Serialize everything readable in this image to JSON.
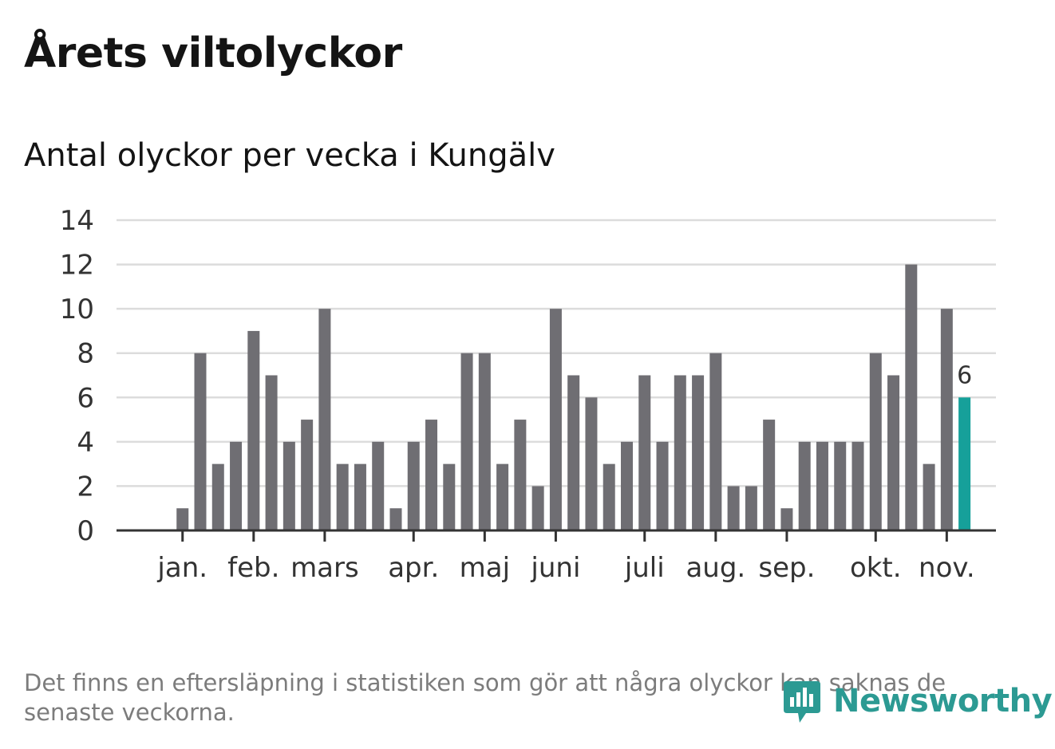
{
  "title": "Årets viltolyckor",
  "subtitle": "Antal olyckor per vecka i Kungälv",
  "footnote": "Det finns en eftersläpning i statistiken som gör att några olyckor kan saknas de senaste veckorna.",
  "brand": {
    "name": "Newsworthy",
    "color": "#2c9a93"
  },
  "colors": {
    "bar": "#6f6e73",
    "highlight": "#16a09a",
    "grid": "#dcdcdc",
    "axis": "#333333",
    "text": "#333333"
  },
  "chart_data": {
    "type": "bar",
    "x_label_step": "week",
    "weeks": [
      1,
      2,
      3,
      4,
      5,
      6,
      7,
      8,
      9,
      10,
      11,
      12,
      13,
      14,
      15,
      16,
      17,
      18,
      19,
      20,
      21,
      22,
      23,
      24,
      25,
      26,
      27,
      28,
      29,
      30,
      31,
      32,
      33,
      34,
      35,
      36,
      37,
      38,
      39,
      40,
      41,
      42,
      43,
      44,
      45,
      46,
      47
    ],
    "values": [
      0,
      0,
      1,
      8,
      3,
      4,
      9,
      7,
      4,
      5,
      10,
      3,
      3,
      4,
      1,
      4,
      5,
      3,
      8,
      8,
      3,
      5,
      2,
      10,
      7,
      6,
      3,
      4,
      7,
      4,
      7,
      7,
      8,
      2,
      2,
      5,
      1,
      4,
      4,
      4,
      4,
      8,
      7,
      12,
      3,
      10,
      6
    ],
    "highlight_index": 46,
    "highlight_label": "6",
    "ylim": [
      0,
      14
    ],
    "yticks": [
      "0",
      "2",
      "4",
      "6",
      "8",
      "10",
      "12",
      "14"
    ],
    "month_labels": [
      {
        "label": "jan.",
        "week": 3
      },
      {
        "label": "feb.",
        "week": 7
      },
      {
        "label": "mars",
        "week": 11
      },
      {
        "label": "apr.",
        "week": 16
      },
      {
        "label": "maj",
        "week": 20
      },
      {
        "label": "juni",
        "week": 24
      },
      {
        "label": "juli",
        "week": 29
      },
      {
        "label": "aug.",
        "week": 33
      },
      {
        "label": "sep.",
        "week": 37
      },
      {
        "label": "okt.",
        "week": 42
      },
      {
        "label": "nov.",
        "week": 46
      }
    ],
    "grid": true,
    "xlabel": "",
    "ylabel": ""
  }
}
